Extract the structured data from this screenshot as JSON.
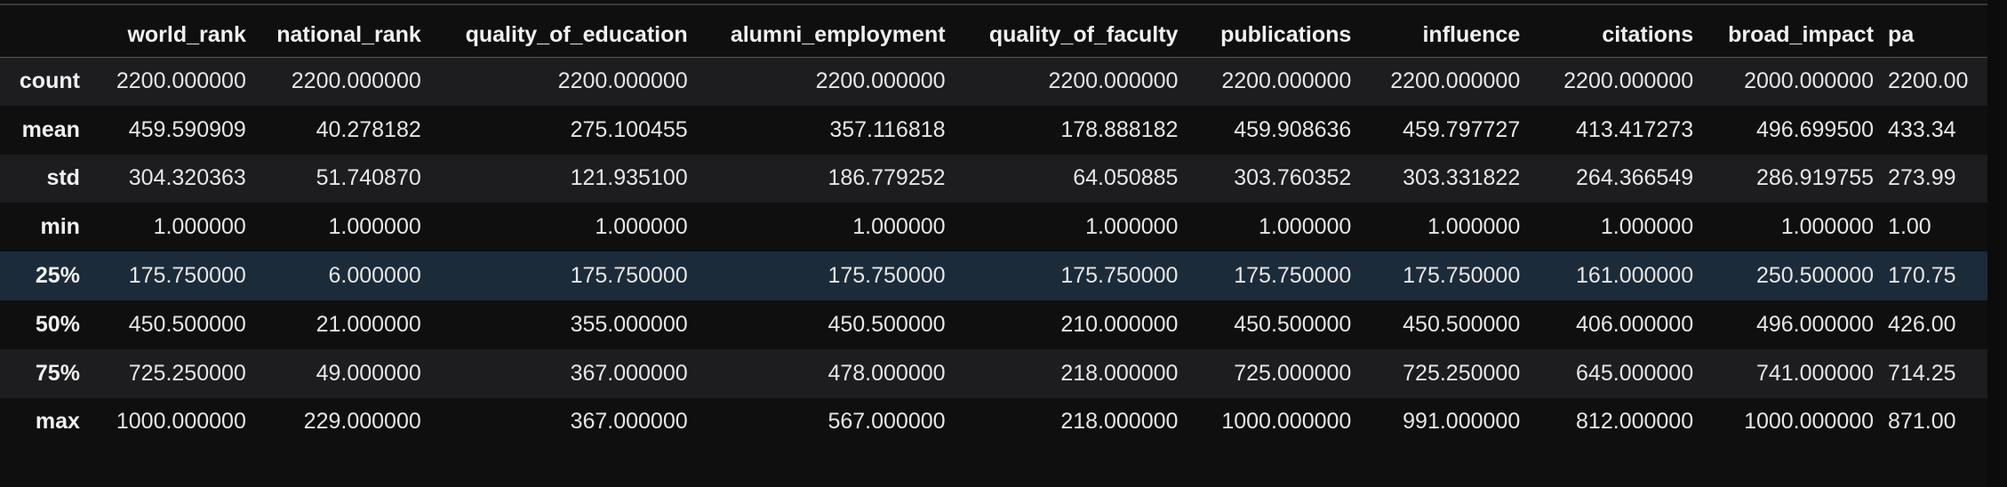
{
  "dataframe": {
    "index_header": "",
    "columns": [
      "world_rank",
      "national_rank",
      "quality_of_education",
      "alumni_employment",
      "quality_of_faculty",
      "publications",
      "influence",
      "citations",
      "broad_impact",
      "pa"
    ],
    "rows": [
      {
        "label": "count",
        "cells": [
          "2200.000000",
          "2200.000000",
          "2200.000000",
          "2200.000000",
          "2200.000000",
          "2200.000000",
          "2200.000000",
          "2200.000000",
          "2000.000000",
          "2200.00"
        ]
      },
      {
        "label": "mean",
        "cells": [
          "459.590909",
          "40.278182",
          "275.100455",
          "357.116818",
          "178.888182",
          "459.908636",
          "459.797727",
          "413.417273",
          "496.699500",
          "433.34"
        ]
      },
      {
        "label": "std",
        "cells": [
          "304.320363",
          "51.740870",
          "121.935100",
          "186.779252",
          "64.050885",
          "303.760352",
          "303.331822",
          "264.366549",
          "286.919755",
          "273.99"
        ]
      },
      {
        "label": "min",
        "cells": [
          "1.000000",
          "1.000000",
          "1.000000",
          "1.000000",
          "1.000000",
          "1.000000",
          "1.000000",
          "1.000000",
          "1.000000",
          "1.00"
        ]
      },
      {
        "label": "25%",
        "cells": [
          "175.750000",
          "6.000000",
          "175.750000",
          "175.750000",
          "175.750000",
          "175.750000",
          "175.750000",
          "161.000000",
          "250.500000",
          "170.75"
        ]
      },
      {
        "label": "50%",
        "cells": [
          "450.500000",
          "21.000000",
          "355.000000",
          "450.500000",
          "210.000000",
          "450.500000",
          "450.500000",
          "406.000000",
          "496.000000",
          "426.00"
        ]
      },
      {
        "label": "75%",
        "cells": [
          "725.250000",
          "49.000000",
          "367.000000",
          "478.000000",
          "218.000000",
          "725.000000",
          "725.250000",
          "645.000000",
          "741.000000",
          "714.25"
        ]
      },
      {
        "label": "max",
        "cells": [
          "1000.000000",
          "229.000000",
          "367.000000",
          "567.000000",
          "218.000000",
          "1000.000000",
          "991.000000",
          "812.000000",
          "1000.000000",
          "871.00"
        ]
      }
    ],
    "highlighted_row": "25%"
  },
  "colors": {
    "background": "#0f0f10",
    "row_alt": "#1d1d1f",
    "row_hover": "#1c2b3a",
    "text": "#e6e6e6"
  }
}
